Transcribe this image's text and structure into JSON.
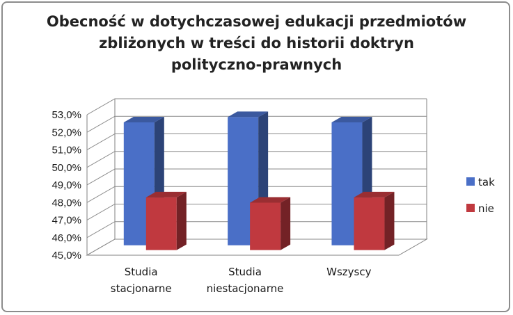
{
  "chart_data": {
    "type": "bar",
    "title_lines": [
      "Obecność w dotychczasowej edukacji przedmiotów",
      "zbliżonych w treści do historii doktryn",
      "polityczno-prawnych"
    ],
    "categories": [
      [
        "Studia",
        "stacjonarne"
      ],
      [
        "Studia",
        "niestacjonarne"
      ],
      [
        "Wszyscy"
      ]
    ],
    "series": [
      {
        "name": "tak",
        "values": [
          52.0,
          52.3,
          52.0
        ],
        "color": "#4a6fc7"
      },
      {
        "name": "nie",
        "values": [
          48.0,
          47.7,
          48.0
        ],
        "color": "#c0393f"
      }
    ],
    "ylim": [
      45.0,
      53.0
    ],
    "yticks": [
      "45,0%",
      "46,0%",
      "47,0%",
      "48,0%",
      "49,0%",
      "50,0%",
      "51,0%",
      "52,0%",
      "53,0%"
    ],
    "grid": true,
    "legend_position": "right"
  }
}
